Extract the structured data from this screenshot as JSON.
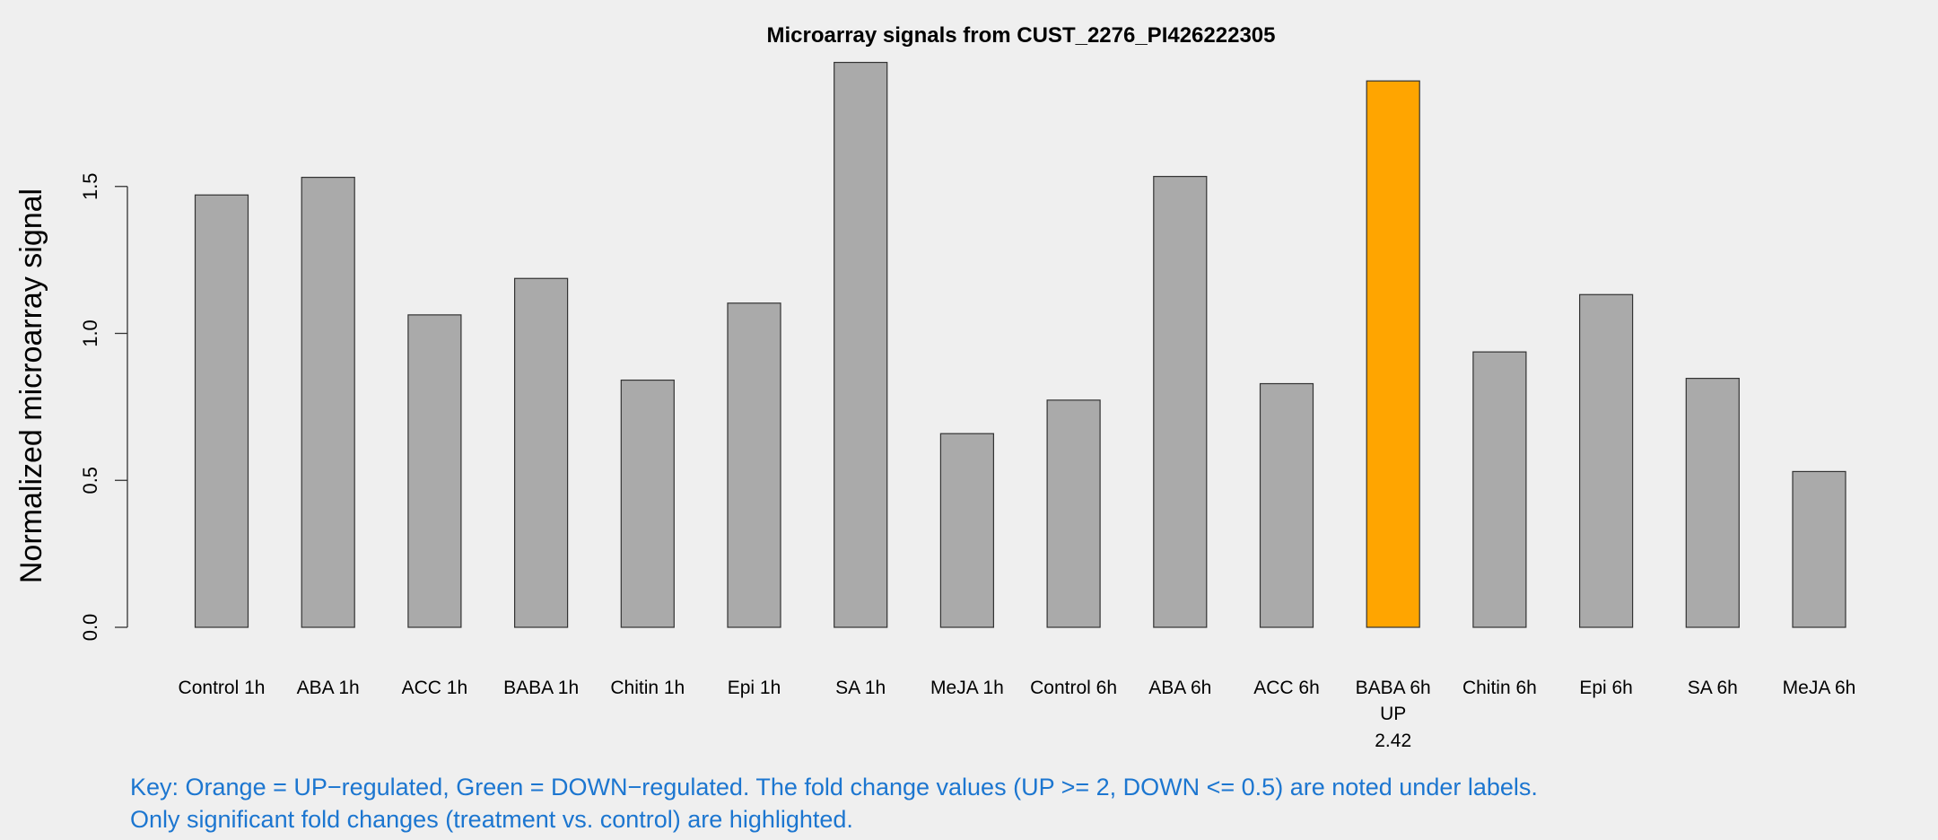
{
  "chart_data": {
    "type": "bar",
    "title": "Microarray signals from CUST_2276_PI426222305",
    "xlabel": "",
    "ylabel": "Normalized microarray signal",
    "ylim": [
      0,
      1.95
    ],
    "yticks": [
      0.0,
      0.5,
      1.0,
      1.5
    ],
    "ytick_labels": [
      "0.0",
      "0.5",
      "1.0",
      "1.5"
    ],
    "categories": [
      "Control 1h",
      "ABA 1h",
      "ACC 1h",
      "BABA 1h",
      "Chitin 1h",
      "Epi 1h",
      "SA 1h",
      "MeJA 1h",
      "Control 6h",
      "ABA 6h",
      "ACC 6h",
      "BABA 6h",
      "Chitin 6h",
      "Epi 6h",
      "SA 6h",
      "MeJA 6h"
    ],
    "values": [
      1.471,
      1.531,
      1.063,
      1.187,
      0.841,
      1.103,
      1.922,
      0.659,
      0.773,
      1.534,
      0.829,
      1.859,
      0.937,
      1.132,
      0.847,
      0.53
    ],
    "colors": [
      "#aaaaaa",
      "#aaaaaa",
      "#aaaaaa",
      "#aaaaaa",
      "#aaaaaa",
      "#aaaaaa",
      "#aaaaaa",
      "#aaaaaa",
      "#aaaaaa",
      "#aaaaaa",
      "#aaaaaa",
      "#ffa500",
      "#aaaaaa",
      "#aaaaaa",
      "#aaaaaa",
      "#aaaaaa"
    ],
    "annotations": [
      {
        "category": "BABA 6h",
        "direction": "UP",
        "fold_change": "2.42"
      }
    ],
    "grid": false,
    "legend": "none"
  },
  "key": {
    "line1": "Key: Orange = UP−regulated, Green = DOWN−regulated. The fold change values (UP >= 2, DOWN <= 0.5) are noted under labels.",
    "line2": "Only significant fold changes (treatment vs. control) are highlighted."
  }
}
